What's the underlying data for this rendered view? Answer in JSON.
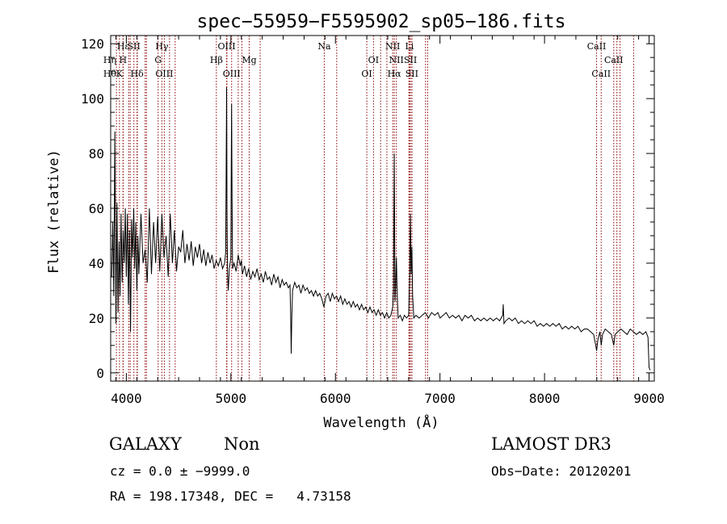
{
  "chart_data": {
    "type": "line",
    "title": "spec−55959−F5595902_sp05−186.fits",
    "xlabel": "Wavelength (Å)",
    "ylabel": "Flux (relative)",
    "xlim": [
      3850,
      9050
    ],
    "ylim": [
      -3,
      123
    ],
    "x_ticks": [
      {
        "value": 4000,
        "label": "4000"
      },
      {
        "value": 5000,
        "label": "5000"
      },
      {
        "value": 6000,
        "label": "6000"
      },
      {
        "value": 7000,
        "label": "7000"
      },
      {
        "value": 8000,
        "label": "8000"
      },
      {
        "value": 9000,
        "label": "9000"
      }
    ],
    "y_ticks": [
      {
        "value": 0,
        "label": "0"
      },
      {
        "value": 20,
        "label": "20"
      },
      {
        "value": 40,
        "label": "40"
      },
      {
        "value": 60,
        "label": "60"
      },
      {
        "value": 80,
        "label": "80"
      },
      {
        "value": 100,
        "label": "100"
      },
      {
        "value": 120,
        "label": "120"
      }
    ],
    "line_color": "#8b0000",
    "lines": [
      {
        "label": "Hε",
        "wave": 3970,
        "row": 0
      },
      {
        "label": "SII",
        "wave": 4072,
        "row": 0
      },
      {
        "label": "Hγ",
        "wave": 4340,
        "row": 0
      },
      {
        "label": "OIII",
        "wave": 4959,
        "row": 0
      },
      {
        "label": "Na",
        "wave": 5893,
        "row": 0
      },
      {
        "label": "NII",
        "wave": 6548,
        "row": 0
      },
      {
        "label": "Li",
        "wave": 6708,
        "row": 0
      },
      {
        "label": "CaII",
        "wave": 8498,
        "row": 0
      },
      {
        "label": "Hη",
        "wave": 3835,
        "row": 1
      },
      {
        "label": "H",
        "wave": 3968,
        "row": 1
      },
      {
        "label": "G",
        "wave": 4304,
        "row": 1
      },
      {
        "label": "Hβ",
        "wave": 4861,
        "row": 1
      },
      {
        "label": "Mg",
        "wave": 5175,
        "row": 1
      },
      {
        "label": "OI",
        "wave": 6364,
        "row": 1
      },
      {
        "label": "NII",
        "wave": 6583,
        "row": 1
      },
      {
        "label": "SII",
        "wave": 6717,
        "row": 1
      },
      {
        "label": "CaII",
        "wave": 8662,
        "row": 1
      },
      {
        "label": "Hθ",
        "wave": 3798,
        "row": 2
      },
      {
        "label": "K",
        "wave": 3934,
        "row": 2
      },
      {
        "label": "Hδ",
        "wave": 4102,
        "row": 2
      },
      {
        "label": "OIII",
        "wave": 4363,
        "row": 2
      },
      {
        "label": "OIII",
        "wave": 5007,
        "row": 2
      },
      {
        "label": "OI",
        "wave": 6300,
        "row": 2
      },
      {
        "label": "Hα",
        "wave": 6563,
        "row": 2
      },
      {
        "label": "SII",
        "wave": 6731,
        "row": 2
      },
      {
        "label": "CaII",
        "wave": 8542,
        "row": 2
      }
    ],
    "marker_waves": [
      3905,
      4022,
      4037,
      4105,
      4180,
      4192,
      4413,
      4467,
      4962,
      5070,
      5105,
      5280,
      6012,
      6432,
      6492,
      6703,
      6732,
      6862,
      6882,
      8692,
      8722,
      8852
    ],
    "spectrum": [
      [
        3860,
        35
      ],
      [
        3870,
        55
      ],
      [
        3880,
        28
      ],
      [
        3890,
        88
      ],
      [
        3900,
        18
      ],
      [
        3910,
        62
      ],
      [
        3920,
        22
      ],
      [
        3930,
        48
      ],
      [
        3940,
        28
      ],
      [
        3950,
        58
      ],
      [
        3960,
        33
      ],
      [
        3970,
        52
      ],
      [
        3980,
        40
      ],
      [
        3990,
        60
      ],
      [
        4000,
        35
      ],
      [
        4010,
        58
      ],
      [
        4020,
        25
      ],
      [
        4030,
        52
      ],
      [
        4040,
        15
      ],
      [
        4050,
        56
      ],
      [
        4060,
        42
      ],
      [
        4070,
        60
      ],
      [
        4080,
        38
      ],
      [
        4090,
        55
      ],
      [
        4100,
        30
      ],
      [
        4110,
        50
      ],
      [
        4120,
        36
      ],
      [
        4140,
        58
      ],
      [
        4160,
        40
      ],
      [
        4180,
        45
      ],
      [
        4200,
        33
      ],
      [
        4220,
        60
      ],
      [
        4240,
        36
      ],
      [
        4260,
        55
      ],
      [
        4280,
        40
      ],
      [
        4300,
        57
      ],
      [
        4320,
        37
      ],
      [
        4340,
        58
      ],
      [
        4360,
        42
      ],
      [
        4380,
        50
      ],
      [
        4400,
        35
      ],
      [
        4420,
        58
      ],
      [
        4440,
        40
      ],
      [
        4460,
        52
      ],
      [
        4480,
        37
      ],
      [
        4500,
        46
      ],
      [
        4520,
        44
      ],
      [
        4540,
        52
      ],
      [
        4560,
        40
      ],
      [
        4580,
        47
      ],
      [
        4600,
        41
      ],
      [
        4620,
        48
      ],
      [
        4640,
        39
      ],
      [
        4660,
        46
      ],
      [
        4680,
        42
      ],
      [
        4700,
        47
      ],
      [
        4720,
        40
      ],
      [
        4740,
        45
      ],
      [
        4760,
        39
      ],
      [
        4780,
        44
      ],
      [
        4800,
        40
      ],
      [
        4820,
        43
      ],
      [
        4840,
        38
      ],
      [
        4860,
        41
      ],
      [
        4880,
        39
      ],
      [
        4900,
        42
      ],
      [
        4920,
        38
      ],
      [
        4940,
        40
      ],
      [
        4950,
        44
      ],
      [
        4955,
        75
      ],
      [
        4959,
        104
      ],
      [
        4963,
        60
      ],
      [
        4968,
        36
      ],
      [
        4975,
        30
      ],
      [
        4985,
        38
      ],
      [
        5000,
        42
      ],
      [
        5003,
        70
      ],
      [
        5007,
        98
      ],
      [
        5011,
        62
      ],
      [
        5016,
        38
      ],
      [
        5030,
        40
      ],
      [
        5050,
        37
      ],
      [
        5070,
        43
      ],
      [
        5090,
        39
      ],
      [
        5100,
        41
      ],
      [
        5110,
        36
      ],
      [
        5130,
        39
      ],
      [
        5150,
        35
      ],
      [
        5170,
        38
      ],
      [
        5190,
        34
      ],
      [
        5210,
        37
      ],
      [
        5230,
        35
      ],
      [
        5250,
        38
      ],
      [
        5270,
        34
      ],
      [
        5290,
        36
      ],
      [
        5310,
        33
      ],
      [
        5330,
        37
      ],
      [
        5350,
        34
      ],
      [
        5370,
        35
      ],
      [
        5390,
        32
      ],
      [
        5410,
        36
      ],
      [
        5430,
        33
      ],
      [
        5450,
        35
      ],
      [
        5470,
        31
      ],
      [
        5490,
        34
      ],
      [
        5510,
        32
      ],
      [
        5530,
        33
      ],
      [
        5550,
        31
      ],
      [
        5565,
        32
      ],
      [
        5572,
        20
      ],
      [
        5577,
        7
      ],
      [
        5582,
        20
      ],
      [
        5590,
        30
      ],
      [
        5610,
        33
      ],
      [
        5630,
        31
      ],
      [
        5650,
        32
      ],
      [
        5670,
        29
      ],
      [
        5690,
        32
      ],
      [
        5710,
        30
      ],
      [
        5730,
        31
      ],
      [
        5750,
        29
      ],
      [
        5770,
        30
      ],
      [
        5790,
        28
      ],
      [
        5810,
        30
      ],
      [
        5830,
        28
      ],
      [
        5850,
        29
      ],
      [
        5870,
        27
      ],
      [
        5890,
        24
      ],
      [
        5910,
        28
      ],
      [
        5930,
        29
      ],
      [
        5950,
        26
      ],
      [
        5970,
        29
      ],
      [
        5990,
        27
      ],
      [
        6010,
        28
      ],
      [
        6030,
        26
      ],
      [
        6050,
        28
      ],
      [
        6070,
        25
      ],
      [
        6090,
        27
      ],
      [
        6110,
        25
      ],
      [
        6130,
        26
      ],
      [
        6150,
        24
      ],
      [
        6170,
        26
      ],
      [
        6190,
        24
      ],
      [
        6210,
        25
      ],
      [
        6230,
        23
      ],
      [
        6250,
        25
      ],
      [
        6270,
        23
      ],
      [
        6290,
        24
      ],
      [
        6310,
        22
      ],
      [
        6330,
        24
      ],
      [
        6350,
        22
      ],
      [
        6370,
        23
      ],
      [
        6390,
        21
      ],
      [
        6410,
        23
      ],
      [
        6430,
        21
      ],
      [
        6450,
        22
      ],
      [
        6470,
        20
      ],
      [
        6490,
        22
      ],
      [
        6510,
        20
      ],
      [
        6530,
        21
      ],
      [
        6548,
        24
      ],
      [
        6555,
        30
      ],
      [
        6560,
        60
      ],
      [
        6563,
        80
      ],
      [
        6566,
        58
      ],
      [
        6570,
        26
      ],
      [
        6576,
        32
      ],
      [
        6583,
        42
      ],
      [
        6590,
        30
      ],
      [
        6600,
        20
      ],
      [
        6620,
        21
      ],
      [
        6640,
        19
      ],
      [
        6660,
        21
      ],
      [
        6680,
        20
      ],
      [
        6700,
        21
      ],
      [
        6710,
        35
      ],
      [
        6717,
        58
      ],
      [
        6724,
        36
      ],
      [
        6731,
        46
      ],
      [
        6738,
        28
      ],
      [
        6750,
        20
      ],
      [
        6770,
        21
      ],
      [
        6800,
        20
      ],
      [
        6830,
        21
      ],
      [
        6860,
        22
      ],
      [
        6890,
        20
      ],
      [
        6920,
        22
      ],
      [
        6950,
        21
      ],
      [
        6980,
        22
      ],
      [
        7000,
        20
      ],
      [
        7030,
        21
      ],
      [
        7060,
        22
      ],
      [
        7090,
        20
      ],
      [
        7120,
        21
      ],
      [
        7150,
        20
      ],
      [
        7180,
        21
      ],
      [
        7210,
        19
      ],
      [
        7240,
        21
      ],
      [
        7270,
        20
      ],
      [
        7300,
        21
      ],
      [
        7330,
        19
      ],
      [
        7360,
        20
      ],
      [
        7390,
        19
      ],
      [
        7420,
        20
      ],
      [
        7450,
        19
      ],
      [
        7480,
        20
      ],
      [
        7510,
        19
      ],
      [
        7540,
        20
      ],
      [
        7570,
        19
      ],
      [
        7600,
        21
      ],
      [
        7605,
        25
      ],
      [
        7612,
        18
      ],
      [
        7630,
        19
      ],
      [
        7660,
        20
      ],
      [
        7690,
        19
      ],
      [
        7720,
        20
      ],
      [
        7750,
        18
      ],
      [
        7780,
        19
      ],
      [
        7810,
        18
      ],
      [
        7840,
        19
      ],
      [
        7870,
        18
      ],
      [
        7900,
        19
      ],
      [
        7930,
        17
      ],
      [
        7960,
        18
      ],
      [
        7990,
        17
      ],
      [
        8020,
        18
      ],
      [
        8050,
        17
      ],
      [
        8080,
        18
      ],
      [
        8110,
        17
      ],
      [
        8140,
        18
      ],
      [
        8170,
        16
      ],
      [
        8200,
        17
      ],
      [
        8230,
        16
      ],
      [
        8260,
        17
      ],
      [
        8290,
        16
      ],
      [
        8320,
        17
      ],
      [
        8350,
        15
      ],
      [
        8380,
        16
      ],
      [
        8410,
        16
      ],
      [
        8440,
        15
      ],
      [
        8470,
        14
      ],
      [
        8490,
        10
      ],
      [
        8498,
        8
      ],
      [
        8510,
        12
      ],
      [
        8530,
        15
      ],
      [
        8542,
        10
      ],
      [
        8555,
        14
      ],
      [
        8580,
        16
      ],
      [
        8610,
        15
      ],
      [
        8640,
        14
      ],
      [
        8662,
        10
      ],
      [
        8675,
        14
      ],
      [
        8700,
        15
      ],
      [
        8730,
        16
      ],
      [
        8760,
        15
      ],
      [
        8790,
        14
      ],
      [
        8820,
        16
      ],
      [
        8850,
        15
      ],
      [
        8880,
        14
      ],
      [
        8910,
        15
      ],
      [
        8940,
        14
      ],
      [
        8970,
        15
      ],
      [
        8990,
        13
      ],
      [
        9000,
        2
      ],
      [
        9010,
        1
      ]
    ]
  },
  "info": {
    "object_class": "GALAXY",
    "subclass": "Non",
    "survey": "LAMOST DR3",
    "redshift": "cz = 0.0 ± −9999.0",
    "obs_date": "Obs−Date: 20120201",
    "coords": "RA = 198.17348, DEC =   4.73158"
  }
}
